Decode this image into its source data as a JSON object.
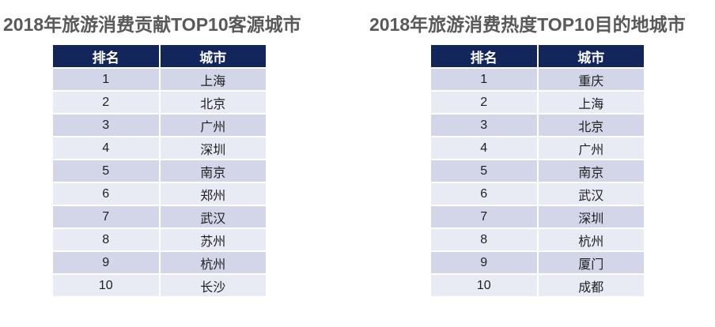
{
  "colors": {
    "header_bg": "#13265c",
    "row_odd": "#d3d6e9",
    "row_even": "#e9ebf4",
    "title_text": "#595959",
    "header_text": "#ffffff",
    "cell_text": "#1f1f1f"
  },
  "tables": [
    {
      "title": "2018年旅游消费贡献TOP10客源城市",
      "columns": [
        "排名",
        "城市"
      ],
      "rows": [
        [
          "1",
          "上海"
        ],
        [
          "2",
          "北京"
        ],
        [
          "3",
          "广州"
        ],
        [
          "4",
          "深圳"
        ],
        [
          "5",
          "南京"
        ],
        [
          "6",
          "郑州"
        ],
        [
          "7",
          "武汉"
        ],
        [
          "8",
          "苏州"
        ],
        [
          "9",
          "杭州"
        ],
        [
          "10",
          "长沙"
        ]
      ]
    },
    {
      "title": "2018年旅游消费热度TOP10目的地城市",
      "columns": [
        "排名",
        "城市"
      ],
      "rows": [
        [
          "1",
          "重庆"
        ],
        [
          "2",
          "上海"
        ],
        [
          "3",
          "北京"
        ],
        [
          "4",
          "广州"
        ],
        [
          "5",
          "南京"
        ],
        [
          "6",
          "武汉"
        ],
        [
          "7",
          "深圳"
        ],
        [
          "8",
          "杭州"
        ],
        [
          "9",
          "厦门"
        ],
        [
          "10",
          "成都"
        ]
      ]
    }
  ],
  "chart_data": [
    {
      "type": "table",
      "title": "2018年旅游消费贡献TOP10客源城市",
      "columns": [
        "排名",
        "城市"
      ],
      "rows": [
        [
          1,
          "上海"
        ],
        [
          2,
          "北京"
        ],
        [
          3,
          "广州"
        ],
        [
          4,
          "深圳"
        ],
        [
          5,
          "南京"
        ],
        [
          6,
          "郑州"
        ],
        [
          7,
          "武汉"
        ],
        [
          8,
          "苏州"
        ],
        [
          9,
          "杭州"
        ],
        [
          10,
          "长沙"
        ]
      ]
    },
    {
      "type": "table",
      "title": "2018年旅游消费热度TOP10目的地城市",
      "columns": [
        "排名",
        "城市"
      ],
      "rows": [
        [
          1,
          "重庆"
        ],
        [
          2,
          "上海"
        ],
        [
          3,
          "北京"
        ],
        [
          4,
          "广州"
        ],
        [
          5,
          "南京"
        ],
        [
          6,
          "武汉"
        ],
        [
          7,
          "深圳"
        ],
        [
          8,
          "杭州"
        ],
        [
          9,
          "厦门"
        ],
        [
          10,
          "成都"
        ]
      ]
    }
  ]
}
